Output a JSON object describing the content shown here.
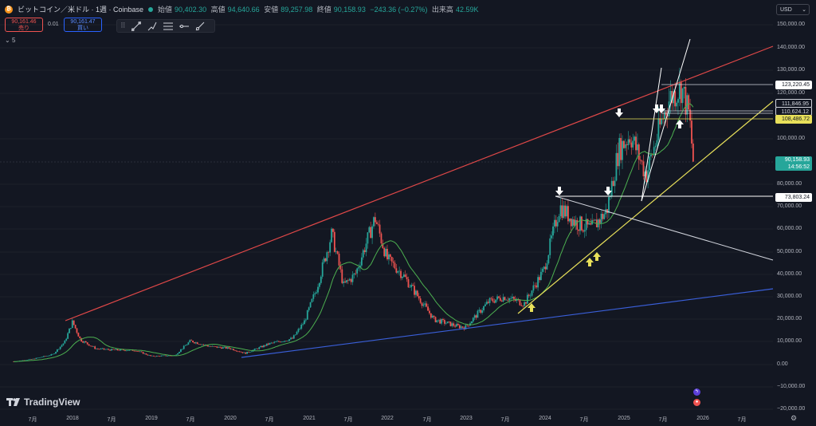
{
  "header": {
    "symbol": "ビットコイン／米ドル · 1週 · Coinbase",
    "open_label": "始値",
    "open": "90,402.30",
    "high_label": "高値",
    "high": "94,640.66",
    "low_label": "安値",
    "low": "89,257.98",
    "close_label": "終値",
    "close": "90,158.93",
    "change": "−243.36 (−0.27%)",
    "volume_label": "出来高",
    "volume": "42.59K"
  },
  "trade": {
    "sell_price": "90,161.46",
    "sell_label": "売り",
    "spread": "0.01",
    "buy_price": "90,161.47",
    "buy_label": "買い"
  },
  "indicator_toggle": "5",
  "toolbar": {
    "icons": [
      "trend-line-icon",
      "brush-icon",
      "fib-icon",
      "horizontal-line-icon",
      "ray-icon"
    ]
  },
  "currency": "USD",
  "y_axis": [
    "150,000.00",
    "140,000.00",
    "130,000.00",
    "120,000.00",
    "100,000.00",
    "80,000.00",
    "70,000.00",
    "60,000.00",
    "50,000.00",
    "40,000.00",
    "30,000.00",
    "20,000.00",
    "10,000.00",
    "0.00",
    "−10,000.00",
    "−20,000.00"
  ],
  "x_axis": [
    "7月",
    "2018",
    "7月",
    "2019",
    "7月",
    "2020",
    "7月",
    "2021",
    "7月",
    "2022",
    "7月",
    "2023",
    "7月",
    "2024",
    "7月",
    "2025",
    "7月",
    "2026",
    "7月"
  ],
  "price_tags": {
    "p123220": "123,220.45",
    "p111846": "111,846.95",
    "p110624": "110,624.12",
    "p108486": "108,486.72",
    "current": "90,158.93",
    "countdown": "14:56:52",
    "p73803": "73,803.24"
  },
  "branding": "TradingView",
  "colors": {
    "up": "#26a69a",
    "down": "#ef5350",
    "red_line": "#e04848",
    "blue_line": "#3a5fd9",
    "yellow_line": "#e8e05a",
    "ma": "#4caf50"
  },
  "chart_data": {
    "type": "line",
    "title": "ビットコイン／米ドル · 1週 · Coinbase",
    "xlabel": "",
    "ylabel": "",
    "ylim": [
      -25000,
      158000
    ],
    "x": [
      2017.25,
      2017.5,
      2017.75,
      2017.9,
      2018.0,
      2018.1,
      2018.3,
      2018.5,
      2018.8,
      2019.0,
      2019.3,
      2019.5,
      2019.75,
      2020.0,
      2020.2,
      2020.5,
      2020.8,
      2020.95,
      2021.1,
      2021.3,
      2021.45,
      2021.6,
      2021.85,
      2022.0,
      2022.2,
      2022.4,
      2022.6,
      2022.9,
      2023.0,
      2023.3,
      2023.5,
      2023.75,
      2024.0,
      2024.2,
      2024.4,
      2024.6,
      2024.8,
      2024.95,
      2025.1,
      2025.3,
      2025.5,
      2025.6,
      2025.75,
      2025.85,
      2025.9
    ],
    "series": [
      {
        "values": [
          1300,
          2500,
          4500,
          10000,
          19000,
          11000,
          7000,
          6500,
          6300,
          3700,
          4000,
          10500,
          8000,
          7200,
          5000,
          9200,
          11500,
          19000,
          33000,
          58000,
          35000,
          40000,
          65000,
          47000,
          40000,
          30000,
          20000,
          17000,
          16500,
          28000,
          30000,
          27000,
          42000,
          70000,
          63000,
          60000,
          68000,
          95000,
          102000,
          84000,
          108000,
          118000,
          123000,
          110000,
          90159
        ]
      }
    ]
  }
}
